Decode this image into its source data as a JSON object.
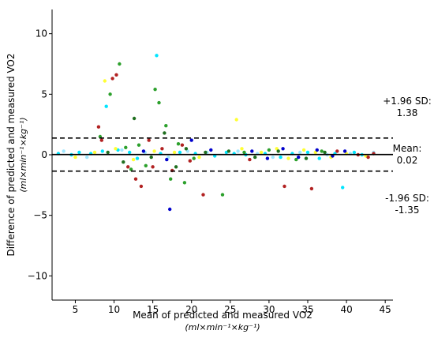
{
  "chart_data": {
    "type": "scatter",
    "title": "",
    "xlabel": "Mean of predicted and measured VO2",
    "xlabel_unit": "(ml×min⁻¹×kg⁻¹)",
    "ylabel": "Difference of predicted and measured VO2",
    "ylabel_unit": "(ml×min⁻¹×kg⁻¹)",
    "xlim": [
      2,
      46
    ],
    "ylim": [
      -12,
      12
    ],
    "xticks": [
      5,
      10,
      15,
      20,
      25,
      30,
      35,
      40,
      45
    ],
    "yticks": [
      -10,
      -5,
      0,
      5,
      10
    ],
    "grid": false,
    "reference_lines": [
      {
        "label": "+1.96 SD:",
        "value": 1.38,
        "value_text": "1.38",
        "style": "dashed"
      },
      {
        "label": "Mean:",
        "value": 0.02,
        "value_text": "0.02",
        "style": "solid"
      },
      {
        "label": "-1.96 SD:",
        "value": -1.35,
        "value_text": "-1.35",
        "style": "dashed"
      }
    ],
    "series_colors": [
      "#00e5ff",
      "#9fe7ff",
      "#ffff33",
      "#2ca02c",
      "#b22222",
      "#0000cc",
      "#1f6f1f"
    ],
    "series": [
      {
        "color": "#00e5ff",
        "points": [
          [
            2.8,
            0.1
          ],
          [
            4.5,
            0.0
          ],
          [
            5.5,
            0.2
          ],
          [
            7.0,
            0.1
          ],
          [
            8.5,
            0.3
          ],
          [
            9.0,
            4.0
          ],
          [
            10.5,
            0.4
          ],
          [
            12.0,
            0.2
          ],
          [
            13.0,
            -0.3
          ],
          [
            15.5,
            8.2
          ],
          [
            16.0,
            0.1
          ],
          [
            18.5,
            0.2
          ],
          [
            20.5,
            0.1
          ],
          [
            23.0,
            -0.1
          ],
          [
            24.5,
            0.2
          ],
          [
            25.5,
            0.1
          ],
          [
            27.0,
            0.0
          ],
          [
            29.5,
            0.1
          ],
          [
            31.5,
            -0.2
          ],
          [
            33.0,
            0.1
          ],
          [
            35.0,
            0.2
          ],
          [
            36.5,
            -0.3
          ],
          [
            38.5,
            0.1
          ],
          [
            39.5,
            -2.7
          ],
          [
            41.0,
            0.2
          ],
          [
            42.0,
            0.0
          ]
        ]
      },
      {
        "color": "#9fe7ff",
        "points": [
          [
            3.5,
            0.3
          ],
          [
            6.5,
            -0.2
          ],
          [
            11.0,
            0.4
          ],
          [
            14.0,
            0.2
          ],
          [
            17.0,
            -0.2
          ],
          [
            19.5,
            0.3
          ],
          [
            22.0,
            0.2
          ],
          [
            26.0,
            0.3
          ],
          [
            28.5,
            0.1
          ],
          [
            30.5,
            -0.2
          ],
          [
            34.0,
            0.2
          ],
          [
            37.5,
            0.0
          ],
          [
            40.5,
            0.1
          ],
          [
            43.5,
            0.2
          ]
        ]
      },
      {
        "color": "#ffff33",
        "points": [
          [
            5.0,
            -0.2
          ],
          [
            7.5,
            0.2
          ],
          [
            8.8,
            6.1
          ],
          [
            10.2,
            0.5
          ],
          [
            12.5,
            -0.4
          ],
          [
            15.2,
            0.3
          ],
          [
            17.8,
            0.2
          ],
          [
            21.0,
            -0.2
          ],
          [
            25.8,
            2.9
          ],
          [
            26.5,
            0.5
          ],
          [
            29.0,
            0.2
          ],
          [
            31.0,
            0.5
          ],
          [
            32.5,
            -0.3
          ],
          [
            34.5,
            0.4
          ],
          [
            36.0,
            0.2
          ],
          [
            38.0,
            -0.2
          ],
          [
            40.0,
            0.1
          ],
          [
            42.5,
            -0.1
          ]
        ]
      },
      {
        "color": "#2ca02c",
        "points": [
          [
            8.2,
            1.5
          ],
          [
            9.5,
            5.0
          ],
          [
            10.7,
            7.5
          ],
          [
            11.5,
            0.6
          ],
          [
            12.2,
            -1.2
          ],
          [
            13.2,
            0.8
          ],
          [
            14.1,
            -0.9
          ],
          [
            15.3,
            5.4
          ],
          [
            15.8,
            4.3
          ],
          [
            16.7,
            2.4
          ],
          [
            17.3,
            -2.0
          ],
          [
            18.3,
            0.9
          ],
          [
            19.1,
            -2.3
          ],
          [
            20.3,
            -0.3
          ],
          [
            24.0,
            -3.3
          ],
          [
            26.8,
            0.2
          ],
          [
            30.0,
            0.4
          ],
          [
            33.5,
            -0.4
          ],
          [
            36.8,
            0.3
          ]
        ]
      },
      {
        "color": "#b22222",
        "points": [
          [
            8.0,
            2.3
          ],
          [
            8.4,
            1.2
          ],
          [
            9.8,
            6.3
          ],
          [
            10.3,
            6.6
          ],
          [
            11.8,
            -1.0
          ],
          [
            12.8,
            -2.0
          ],
          [
            13.5,
            -2.6
          ],
          [
            14.5,
            1.2
          ],
          [
            15.0,
            -1.0
          ],
          [
            16.2,
            0.5
          ],
          [
            17.5,
            -1.3
          ],
          [
            18.8,
            0.8
          ],
          [
            19.8,
            -0.5
          ],
          [
            21.5,
            -3.3
          ],
          [
            27.5,
            -0.4
          ],
          [
            32.0,
            -2.6
          ],
          [
            35.5,
            -2.8
          ],
          [
            38.8,
            0.3
          ],
          [
            41.5,
            0.0
          ],
          [
            42.8,
            -0.2
          ],
          [
            43.5,
            0.1
          ]
        ]
      },
      {
        "color": "#0000cc",
        "points": [
          [
            13.8,
            0.3
          ],
          [
            16.8,
            -0.4
          ],
          [
            17.2,
            -4.5
          ],
          [
            20.0,
            1.2
          ],
          [
            22.5,
            0.4
          ],
          [
            27.8,
            0.3
          ],
          [
            29.8,
            -0.3
          ],
          [
            31.8,
            0.5
          ],
          [
            33.8,
            -0.2
          ],
          [
            36.2,
            0.4
          ],
          [
            38.2,
            -0.1
          ],
          [
            39.8,
            0.3
          ]
        ]
      },
      {
        "color": "#1f6f1f",
        "points": [
          [
            9.2,
            0.2
          ],
          [
            11.2,
            -0.6
          ],
          [
            12.6,
            3.0
          ],
          [
            14.8,
            -0.2
          ],
          [
            16.5,
            1.8
          ],
          [
            18.0,
            -1.0
          ],
          [
            19.3,
            0.5
          ],
          [
            21.8,
            0.2
          ],
          [
            24.8,
            0.3
          ],
          [
            28.2,
            -0.2
          ],
          [
            31.2,
            0.3
          ],
          [
            34.8,
            -0.3
          ],
          [
            37.2,
            0.2
          ]
        ]
      }
    ]
  }
}
